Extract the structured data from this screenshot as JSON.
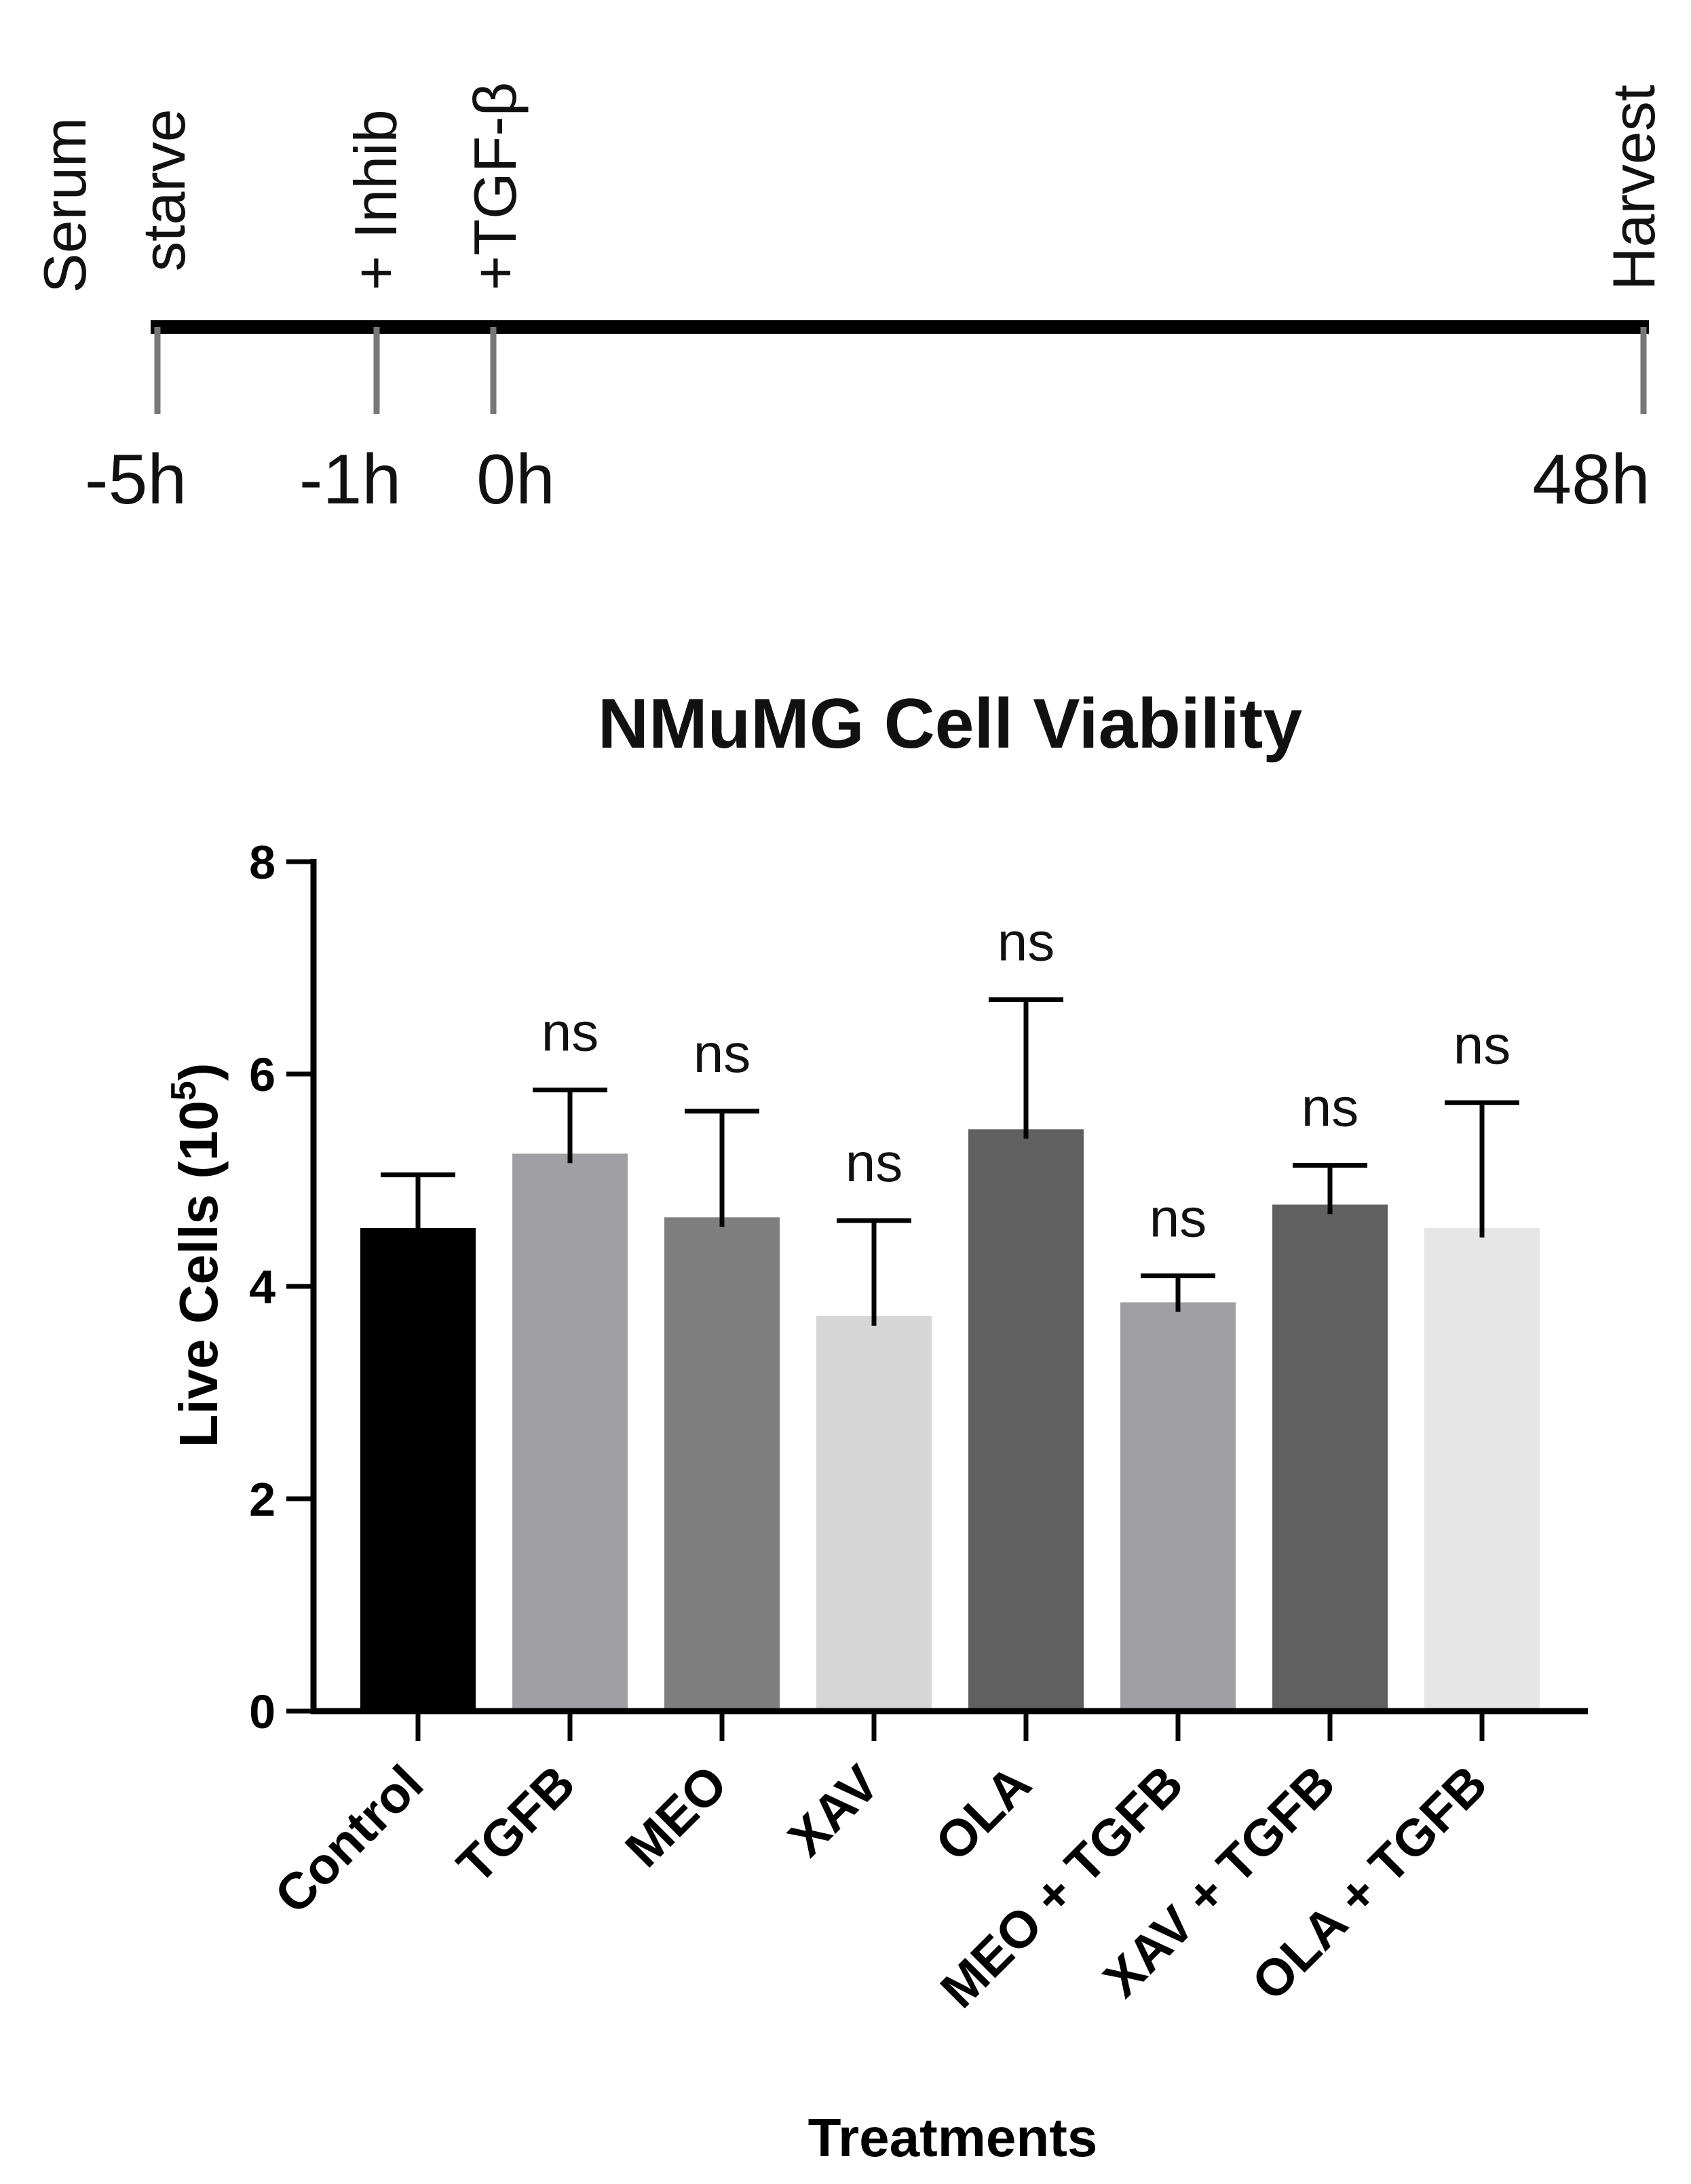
{
  "timeline": {
    "events": [
      {
        "label_lines": [
          "Serum",
          "starve"
        ],
        "time": "-5h",
        "t": -5
      },
      {
        "label_lines": [
          "+ Inhib"
        ],
        "time": "-1h",
        "t": -1
      },
      {
        "label_lines": [
          "+TGF-β"
        ],
        "time": "0h",
        "t": 0
      },
      {
        "label_lines": [
          "Harvest"
        ],
        "time": "48h",
        "t": 48
      }
    ]
  },
  "chart_data": {
    "type": "bar",
    "title": "NMuMG Cell Viability",
    "xlabel": "Treatments",
    "ylabel_main": "Live Cells (10",
    "ylabel_sup": "5",
    "ylabel_end": ")",
    "ylim": [
      0,
      8
    ],
    "yticks": [
      0,
      2,
      4,
      6,
      8
    ],
    "ytick_labels": [
      "0",
      "2",
      "4",
      "6",
      "8"
    ],
    "categories": [
      "Control",
      "TGFB",
      "MEO",
      "XAV",
      "OLA",
      "MEO + TGFB",
      "XAV + TGFB",
      "OLA + TGFB"
    ],
    "values": [
      4.55,
      5.25,
      4.65,
      3.72,
      5.48,
      3.85,
      4.77,
      4.55
    ],
    "errors": [
      0.5,
      0.6,
      1.0,
      0.9,
      1.22,
      0.25,
      0.37,
      1.18
    ],
    "significance": [
      "",
      "ns",
      "ns",
      "ns",
      "ns",
      "ns",
      "ns",
      "ns"
    ],
    "colors": [
      "#000000",
      "#a0a0a4",
      "#7f7f7f",
      "#d6d6d6",
      "#606060",
      "#a0a0a4",
      "#606060",
      "#e6e6e6"
    ]
  }
}
